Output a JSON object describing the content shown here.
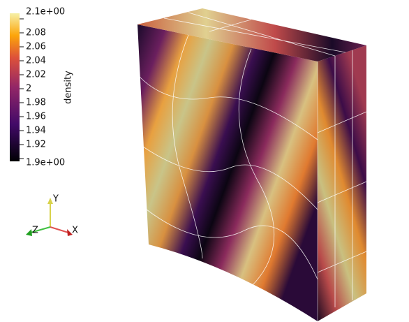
{
  "colorbar": {
    "title": "density",
    "range": [
      1.9,
      2.1
    ],
    "ticks": [
      {
        "value": 2.1,
        "label": "2.1e+00"
      },
      2.08,
      2.06,
      2.04,
      2.02,
      2,
      1.98,
      1.96,
      1.94,
      1.92,
      {
        "value": 1.9,
        "label": "1.9e+00"
      }
    ]
  },
  "axes": {
    "y": "Y",
    "z": "Z",
    "x": "X"
  }
}
